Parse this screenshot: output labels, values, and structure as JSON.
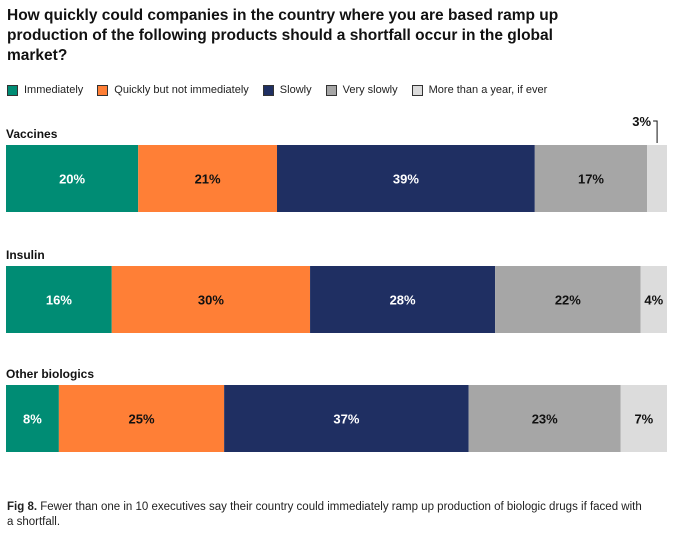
{
  "chart_data": {
    "type": "bar",
    "orientation": "horizontal-stacked-100",
    "title": "How quickly could companies in the country where you are based ramp up production of the following products should a shortfall occur in the global market?",
    "series": [
      {
        "name": "Immediately",
        "color": "#008c74"
      },
      {
        "name": "Quickly but not immediately",
        "color": "#ff7f36"
      },
      {
        "name": "Slowly",
        "color": "#1f2f62"
      },
      {
        "name": "Very slowly",
        "color": "#a6a6a6"
      },
      {
        "name": "More than a year, if ever",
        "color": "#dcdcdc"
      }
    ],
    "categories": [
      "Vaccines",
      "Insulin",
      "Other biologics"
    ],
    "values": [
      [
        20,
        21,
        39,
        17,
        3
      ],
      [
        16,
        30,
        28,
        22,
        4
      ],
      [
        8,
        25,
        37,
        23,
        7
      ]
    ],
    "labels": [
      [
        "20%",
        "21%",
        "39%",
        "17%",
        "3%"
      ],
      [
        "16%",
        "30%",
        "28%",
        "22%",
        "4%"
      ],
      [
        "8%",
        "25%",
        "37%",
        "23%",
        "7%"
      ]
    ],
    "label_colors": [
      "#ffffff",
      "#111111",
      "#ffffff",
      "#111111",
      "#111111"
    ],
    "xlim": [
      0,
      100
    ]
  },
  "caption": {
    "fig_label": "Fig 8.",
    "text": " Fewer than one in 10 executives say their country could immediately ramp up production of biologic drugs if faced with a shortfall."
  }
}
